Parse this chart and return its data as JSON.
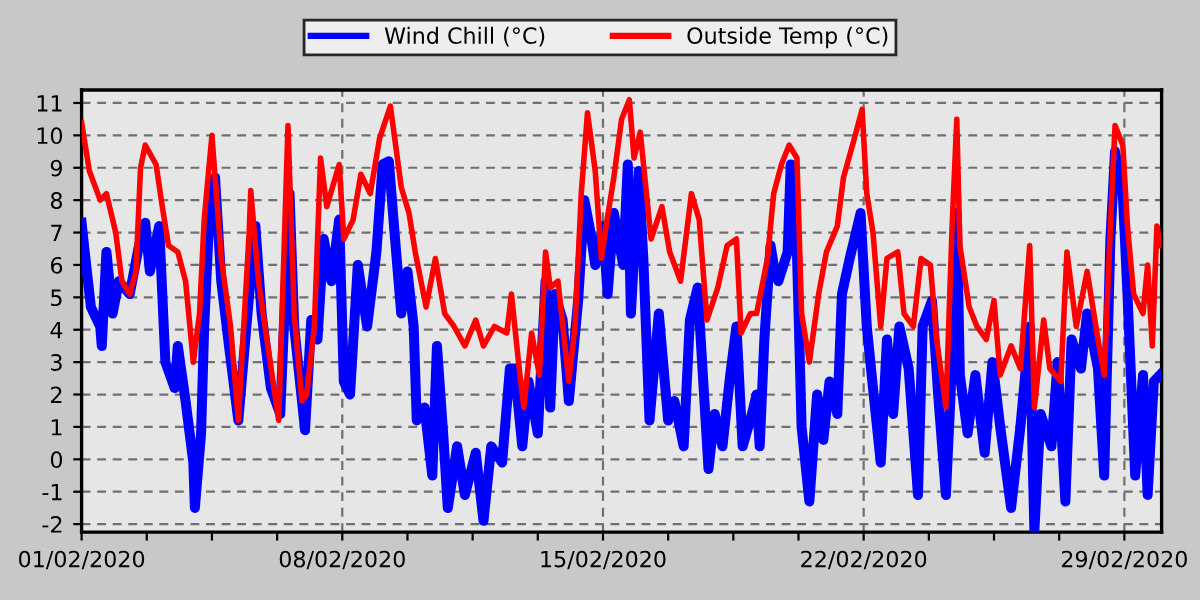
{
  "chart_data": {
    "type": "line",
    "xlim": [
      "2020-02-01",
      "2020-03-01"
    ],
    "xticks": [
      {
        "value": "2020-02-01",
        "label": "01/02/2020"
      },
      {
        "value": "2020-02-02T18:00",
        "label": null
      },
      {
        "value": "2020-02-04T12:00",
        "label": null
      },
      {
        "value": "2020-02-06T06:00",
        "label": null
      },
      {
        "value": "2020-02-08",
        "label": "08/02/2020"
      },
      {
        "value": "2020-02-09T18:00",
        "label": null
      },
      {
        "value": "2020-02-11T12:00",
        "label": null
      },
      {
        "value": "2020-02-13T06:00",
        "label": null
      },
      {
        "value": "2020-02-15",
        "label": "15/02/2020"
      },
      {
        "value": "2020-02-16T18:00",
        "label": null
      },
      {
        "value": "2020-02-18T12:00",
        "label": null
      },
      {
        "value": "2020-02-20T06:00",
        "label": null
      },
      {
        "value": "2020-02-22",
        "label": "22/02/2020"
      },
      {
        "value": "2020-02-23T18:00",
        "label": null
      },
      {
        "value": "2020-02-25T12:00",
        "label": null
      },
      {
        "value": "2020-02-27T06:00",
        "label": null
      },
      {
        "value": "2020-02-29",
        "label": "29/02/2020"
      }
    ],
    "ylim": [
      -2.25,
      11.4
    ],
    "yticks": [
      -2,
      -1,
      0,
      1,
      2,
      3,
      4,
      5,
      6,
      7,
      8,
      9,
      10,
      11
    ],
    "grid": true,
    "legend": "top",
    "line_style": "solid",
    "marker": "none",
    "series": [
      {
        "name": "Wind Chill (°C)",
        "color": "#0000ff",
        "x": [
          "2020-02-01T00:00",
          "2020-02-01T02:00",
          "2020-02-01T06:00",
          "2020-02-01T12:00",
          "2020-02-01T13:00",
          "2020-02-01T16:00",
          "2020-02-01T20:00",
          "2020-02-02T00:00",
          "2020-02-02T07:00",
          "2020-02-02T13:00",
          "2020-02-02T17:00",
          "2020-02-02T20:00",
          "2020-02-03T02:00",
          "2020-02-03T06:00",
          "2020-02-03T12:00",
          "2020-02-03T14:00",
          "2020-02-03T19:00",
          "2020-02-04T00:00",
          "2020-02-04T01:00",
          "2020-02-04T05:00",
          "2020-02-04T07:00",
          "2020-02-04T11:00",
          "2020-02-04T14:00",
          "2020-02-04T18:00",
          "2020-02-04T23:00",
          "2020-02-05T05:00",
          "2020-02-05T12:00",
          "2020-02-05T16:00",
          "2020-02-05T20:00",
          "2020-02-06T02:00",
          "2020-02-06T08:00",
          "2020-02-06T14:00",
          "2020-02-06T17:00",
          "2020-02-07T00:00",
          "2020-02-07T04:00",
          "2020-02-07T08:00",
          "2020-02-07T12:00",
          "2020-02-07T17:00",
          "2020-02-07T22:00",
          "2020-02-08T01:00",
          "2020-02-08T05:00",
          "2020-02-08T10:00",
          "2020-02-08T16:00",
          "2020-02-08T22:00",
          "2020-02-09T02:00",
          "2020-02-09T06:00",
          "2020-02-09T10:00",
          "2020-02-09T14:00",
          "2020-02-09T18:00",
          "2020-02-09T22:00",
          "2020-02-10T00:00",
          "2020-02-10T05:00",
          "2020-02-10T10:00",
          "2020-02-10T13:00",
          "2020-02-10T17:00",
          "2020-02-10T20:00",
          "2020-02-11T02:00",
          "2020-02-11T07:00",
          "2020-02-11T14:00",
          "2020-02-11T19:00",
          "2020-02-12T00:00",
          "2020-02-12T07:00",
          "2020-02-12T12:00",
          "2020-02-12T15:00",
          "2020-02-12T20:00",
          "2020-02-13T00:00",
          "2020-02-13T06:00",
          "2020-02-13T11:00",
          "2020-02-13T14:00",
          "2020-02-13T17:00",
          "2020-02-13T22:00",
          "2020-02-14T02:00",
          "2020-02-14T08:00",
          "2020-02-14T12:00",
          "2020-02-14T16:00",
          "2020-02-14T19:00",
          "2020-02-15T00:00",
          "2020-02-15T03:00",
          "2020-02-15T07:00",
          "2020-02-15T13:00",
          "2020-02-15T16:00",
          "2020-02-15T18:00",
          "2020-02-15T23:00",
          "2020-02-16T02:00",
          "2020-02-16T06:00",
          "2020-02-16T12:00",
          "2020-02-16T18:00",
          "2020-02-16T22:00",
          "2020-02-17T04:00",
          "2020-02-17T08:00",
          "2020-02-17T13:00",
          "2020-02-17T20:00",
          "2020-02-18T00:00",
          "2020-02-18T05:00",
          "2020-02-18T10:00",
          "2020-02-18T14:00",
          "2020-02-18T18:00",
          "2020-02-19T00:00",
          "2020-02-19T03:00",
          "2020-02-19T05:00",
          "2020-02-19T08:00",
          "2020-02-19T12:00",
          "2020-02-19T14:00",
          "2020-02-19T17:00",
          "2020-02-19T23:00",
          "2020-02-20T01:00",
          "2020-02-20T05:00",
          "2020-02-20T08:00",
          "2020-02-20T13:00",
          "2020-02-20T18:00",
          "2020-02-20T22:00",
          "2020-02-21T02:00",
          "2020-02-21T07:00",
          "2020-02-21T10:00",
          "2020-02-21T15:00",
          "2020-02-21T19:00",
          "2020-02-21T22:00",
          "2020-02-22T02:00",
          "2020-02-22T06:00",
          "2020-02-22T11:00",
          "2020-02-22T15:00",
          "2020-02-22T19:00",
          "2020-02-22T23:00",
          "2020-02-23T05:00",
          "2020-02-23T11:00",
          "2020-02-23T14:00",
          "2020-02-23T20:00",
          "2020-02-24T00:00",
          "2020-02-24T05:00",
          "2020-02-24T08:00",
          "2020-02-24T12:00",
          "2020-02-24T14:00",
          "2020-02-24T19:00",
          "2020-02-25T00:00",
          "2020-02-25T06:00",
          "2020-02-25T11:00",
          "2020-02-25T16:00",
          "2020-02-25T23:00",
          "2020-02-26T05:00",
          "2020-02-26T11:00",
          "2020-02-26T14:00",
          "2020-02-26T18:00",
          "2020-02-27T01:00",
          "2020-02-27T05:00",
          "2020-02-27T10:00",
          "2020-02-27T14:00",
          "2020-02-27T20:00",
          "2020-02-28T00:00",
          "2020-02-28T07:00",
          "2020-02-28T11:00",
          "2020-02-28T15:00",
          "2020-02-28T18:00",
          "2020-02-28T23:00",
          "2020-02-29T02:00",
          "2020-02-29T07:00",
          "2020-02-29T12:00",
          "2020-02-29T15:00",
          "2020-02-29T19:00",
          "2020-02-29T23:00"
        ],
        "values": [
          7.3,
          6.4,
          4.7,
          4.1,
          3.5,
          6.4,
          4.5,
          5.5,
          5.1,
          6.6,
          7.3,
          5.8,
          7.2,
          3.0,
          2.2,
          3.5,
          1.8,
          -0.1,
          -1.5,
          0.8,
          4.1,
          8.2,
          8.7,
          5.5,
          3.5,
          1.2,
          5.1,
          7.2,
          4.5,
          2.2,
          1.4,
          8.2,
          4.1,
          0.9,
          4.3,
          3.7,
          6.8,
          5.5,
          7.4,
          2.4,
          2.0,
          6.0,
          4.1,
          6.4,
          9.1,
          9.2,
          6.8,
          4.5,
          5.8,
          4.1,
          1.2,
          1.6,
          -0.5,
          3.5,
          0.8,
          -1.5,
          0.4,
          -1.1,
          0.2,
          -1.9,
          0.4,
          -0.1,
          2.8,
          2.8,
          0.4,
          2.4,
          0.8,
          5.5,
          1.6,
          5.1,
          4.3,
          1.8,
          4.9,
          8.0,
          7.0,
          6.0,
          7.2,
          5.1,
          7.6,
          6.0,
          9.1,
          4.5,
          8.9,
          6.2,
          1.2,
          4.5,
          1.2,
          1.8,
          0.4,
          4.3,
          5.3,
          -0.3,
          1.4,
          0.4,
          2.6,
          4.1,
          0.4,
          1.4,
          2.0,
          0.4,
          3.7,
          6.6,
          6.0,
          5.5,
          6.4,
          9.1,
          6.4,
          1.0,
          -1.3,
          2.0,
          0.6,
          2.4,
          1.4,
          5.1,
          6.2,
          7.0,
          7.6,
          4.1,
          2.2,
          -0.1,
          3.7,
          1.4,
          4.1,
          2.8,
          -1.1,
          4.1,
          4.9,
          2.0,
          -1.1,
          2.0,
          7.6,
          2.6,
          0.8,
          2.6,
          0.2,
          3.0,
          1.0,
          -1.5,
          1.0,
          4.1,
          -2.2,
          1.4,
          0.4,
          3.0,
          -1.3,
          3.7,
          2.8,
          4.5,
          2.8,
          -0.5,
          6.8,
          9.5,
          8.2,
          5.1,
          -0.5,
          2.6,
          -1.1,
          2.4,
          2.6
        ]
      },
      {
        "name": "Outside Temp (°C)",
        "color": "#ff0000",
        "x": [
          "2020-02-01T00:00",
          "2020-02-01T05:00",
          "2020-02-01T12:00",
          "2020-02-01T16:00",
          "2020-02-01T22:00",
          "2020-02-02T02:00",
          "2020-02-02T07:00",
          "2020-02-02T11:00",
          "2020-02-02T14:00",
          "2020-02-02T17:00",
          "2020-02-03T00:00",
          "2020-02-03T04:00",
          "2020-02-03T08:00",
          "2020-02-03T14:00",
          "2020-02-03T19:00",
          "2020-02-04T00:00",
          "2020-02-04T04:00",
          "2020-02-04T07:00",
          "2020-02-04T12:00",
          "2020-02-04T18:00",
          "2020-02-05T00:00",
          "2020-02-05T05:00",
          "2020-02-05T12:00",
          "2020-02-05T13:00",
          "2020-02-05T18:00",
          "2020-02-06T00:00",
          "2020-02-06T07:00",
          "2020-02-06T13:00",
          "2020-02-06T17:00",
          "2020-02-06T22:00",
          "2020-02-07T01:00",
          "2020-02-07T06:00",
          "2020-02-07T10:00",
          "2020-02-07T14:00",
          "2020-02-07T22:00",
          "2020-02-08T01:00",
          "2020-02-08T07:00",
          "2020-02-08T12:00",
          "2020-02-08T18:00",
          "2020-02-09T00:00",
          "2020-02-09T07:00",
          "2020-02-09T14:00",
          "2020-02-09T19:00",
          "2020-02-09T23:00",
          "2020-02-10T06:00",
          "2020-02-10T12:00",
          "2020-02-10T18:00",
          "2020-02-11T00:00",
          "2020-02-11T07:00",
          "2020-02-11T14:00",
          "2020-02-11T19:00",
          "2020-02-12T02:00",
          "2020-02-12T10:00",
          "2020-02-12T13:00",
          "2020-02-12T18:00",
          "2020-02-12T21:00",
          "2020-02-13T02:00",
          "2020-02-13T07:00",
          "2020-02-13T11:00",
          "2020-02-13T14:00",
          "2020-02-13T19:00",
          "2020-02-14T02:00",
          "2020-02-14T06:00",
          "2020-02-14T10:00",
          "2020-02-14T14:00",
          "2020-02-14T19:00",
          "2020-02-14T23:00",
          "2020-02-15T02:00",
          "2020-02-15T07:00",
          "2020-02-15T12:00",
          "2020-02-15T17:00",
          "2020-02-15T20:00",
          "2020-02-16T00:00",
          "2020-02-16T07:00",
          "2020-02-16T14:00",
          "2020-02-16T19:00",
          "2020-02-17T02:00",
          "2020-02-17T09:00",
          "2020-02-17T14:00",
          "2020-02-17T19:00",
          "2020-02-18T02:00",
          "2020-02-18T08:00",
          "2020-02-18T14:00",
          "2020-02-18T17:00",
          "2020-02-18T23:00",
          "2020-02-19T03:00",
          "2020-02-19T10:00",
          "2020-02-19T14:00",
          "2020-02-19T19:00",
          "2020-02-20T00:00",
          "2020-02-20T05:00",
          "2020-02-20T08:00",
          "2020-02-20T13:00",
          "2020-02-20T19:00",
          "2020-02-21T00:00",
          "2020-02-21T07:00",
          "2020-02-21T11:00",
          "2020-02-21T18:00",
          "2020-02-21T23:00",
          "2020-02-22T02:00",
          "2020-02-22T06:00",
          "2020-02-22T11:00",
          "2020-02-22T15:00",
          "2020-02-22T22:00",
          "2020-02-23T02:00",
          "2020-02-23T08:00",
          "2020-02-23T13:00",
          "2020-02-23T19:00",
          "2020-02-23T23:00",
          "2020-02-24T05:00",
          "2020-02-24T09:00",
          "2020-02-24T12:00",
          "2020-02-24T14:00",
          "2020-02-24T20:00",
          "2020-02-25T01:00",
          "2020-02-25T07:00",
          "2020-02-25T12:00",
          "2020-02-25T16:00",
          "2020-02-25T23:00",
          "2020-02-26T05:00",
          "2020-02-26T11:00",
          "2020-02-26T14:00",
          "2020-02-26T20:00",
          "2020-02-27T00:00",
          "2020-02-27T07:00",
          "2020-02-27T11:00",
          "2020-02-27T17:00",
          "2020-02-28T00:00",
          "2020-02-28T07:00",
          "2020-02-28T11:00",
          "2020-02-28T15:00",
          "2020-02-28T18:00",
          "2020-02-28T23:00",
          "2020-02-29T02:00",
          "2020-02-29T06:00",
          "2020-02-29T12:00",
          "2020-02-29T15:00",
          "2020-02-29T18:00",
          "2020-02-29T21:00",
          "2020-02-29T23:00"
        ],
        "values": [
          10.4,
          8.9,
          8.0,
          8.2,
          7.0,
          5.5,
          5.1,
          5.8,
          9.0,
          9.7,
          9.1,
          7.8,
          6.6,
          6.4,
          5.5,
          3.0,
          4.5,
          7.4,
          10.0,
          6.2,
          4.1,
          1.2,
          7.0,
          8.3,
          5.5,
          3.5,
          1.2,
          10.3,
          4.5,
          1.8,
          2.0,
          4.1,
          9.3,
          7.8,
          9.1,
          6.8,
          7.4,
          8.8,
          8.2,
          9.9,
          10.9,
          8.4,
          7.6,
          6.4,
          4.7,
          6.2,
          4.5,
          4.1,
          3.5,
          4.3,
          3.5,
          4.1,
          3.9,
          5.1,
          2.8,
          1.6,
          3.9,
          2.6,
          6.4,
          5.3,
          5.5,
          2.4,
          4.1,
          8.2,
          10.7,
          8.9,
          6.2,
          7.2,
          8.7,
          10.5,
          11.1,
          9.3,
          10.1,
          6.8,
          7.8,
          6.4,
          5.5,
          8.2,
          7.4,
          4.3,
          5.3,
          6.6,
          6.8,
          3.9,
          4.5,
          4.5,
          6.2,
          8.2,
          9.1,
          9.7,
          9.3,
          4.5,
          3.0,
          5.1,
          6.4,
          7.2,
          8.7,
          9.9,
          10.8,
          8.2,
          7.0,
          4.1,
          6.2,
          6.4,
          4.5,
          4.1,
          6.2,
          6.0,
          3.7,
          1.6,
          7.2,
          10.5,
          6.6,
          4.7,
          4.1,
          3.7,
          4.9,
          2.6,
          3.5,
          2.8,
          6.6,
          1.6,
          4.3,
          2.8,
          2.4,
          6.4,
          4.1,
          5.8,
          3.7,
          2.6,
          7.2,
          10.3,
          9.7,
          7.2,
          5.1,
          4.5,
          6.0,
          3.5,
          7.2,
          6.6
        ]
      }
    ]
  }
}
